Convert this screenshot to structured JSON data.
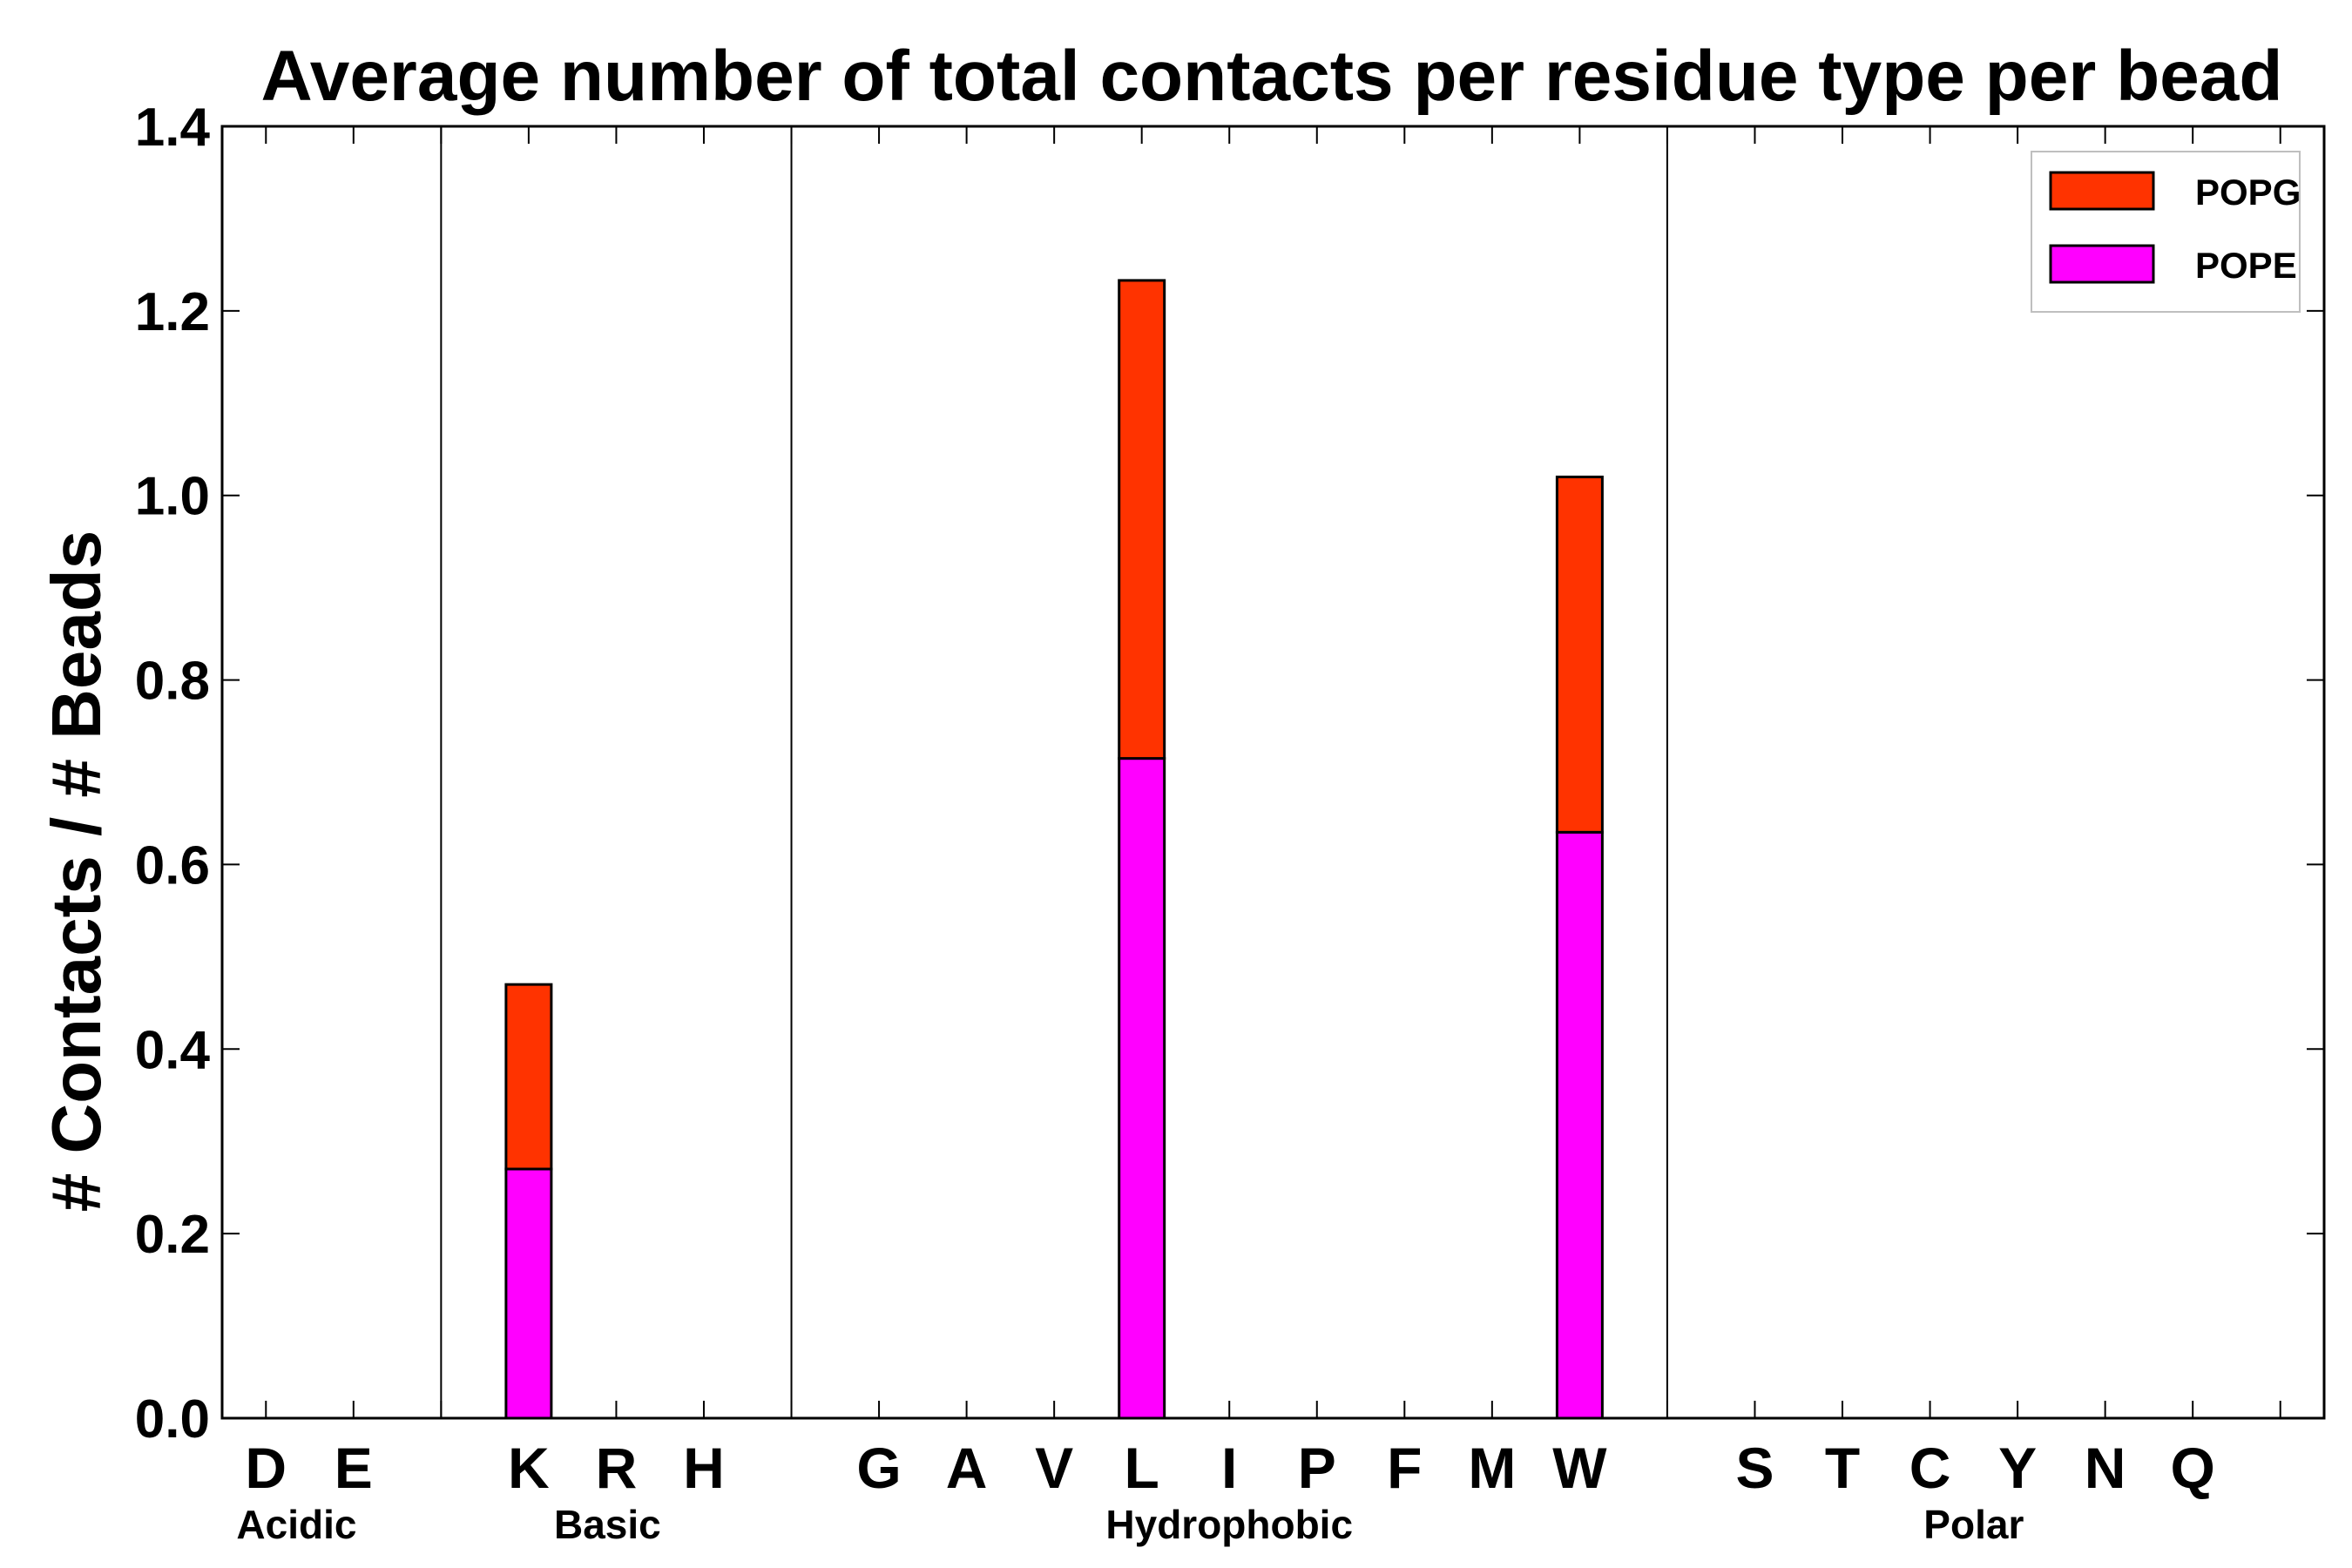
{
  "chart_data": {
    "type": "bar",
    "stacked": true,
    "title": "Average number of total contacts per residue type per bead",
    "xlabel": "",
    "ylabel": "# Contacts / # Beads",
    "ylim": [
      0,
      1.4
    ],
    "yticks": [
      0.0,
      0.2,
      0.4,
      0.6,
      0.8,
      1.0,
      1.2,
      1.4
    ],
    "ytick_labels": [
      "0.0",
      "0.2",
      "0.4",
      "0.6",
      "0.8",
      "1.0",
      "1.2",
      "1.4"
    ],
    "categories": [
      "D",
      "E",
      "K",
      "R",
      "H",
      "G",
      "A",
      "V",
      "L",
      "I",
      "P",
      "F",
      "M",
      "W",
      "S",
      "T",
      "C",
      "Y",
      "N",
      "Q"
    ],
    "category_slots": [
      1,
      2,
      4,
      5,
      6,
      8,
      9,
      10,
      11,
      12,
      13,
      14,
      15,
      16,
      18,
      19,
      20,
      21,
      22,
      23
    ],
    "separator_slots": [
      3,
      7,
      17
    ],
    "groups": [
      {
        "label": "Acidic",
        "slot": 1.35
      },
      {
        "label": "Basic",
        "slot": 4.9
      },
      {
        "label": "Hydrophobic",
        "slot": 12.0
      },
      {
        "label": "Polar",
        "slot": 20.5
      }
    ],
    "series": [
      {
        "name": "POPE",
        "color": "#ff00ff",
        "values": [
          0,
          0,
          0.27,
          0,
          0,
          0,
          0,
          0,
          0.715,
          0,
          0,
          0,
          0,
          0.635,
          0,
          0,
          0,
          0,
          0,
          0
        ]
      },
      {
        "name": "POPG",
        "color": "#ff3300",
        "values": [
          0,
          0,
          0.2,
          0,
          0,
          0,
          0,
          0,
          0.518,
          0,
          0,
          0,
          0,
          0.385,
          0,
          0,
          0,
          0,
          0,
          0
        ]
      }
    ],
    "legend": {
      "position": "top-right",
      "entries": [
        {
          "label": "POPG",
          "color": "#ff3300"
        },
        {
          "label": "POPE",
          "color": "#ff00ff"
        }
      ]
    }
  }
}
